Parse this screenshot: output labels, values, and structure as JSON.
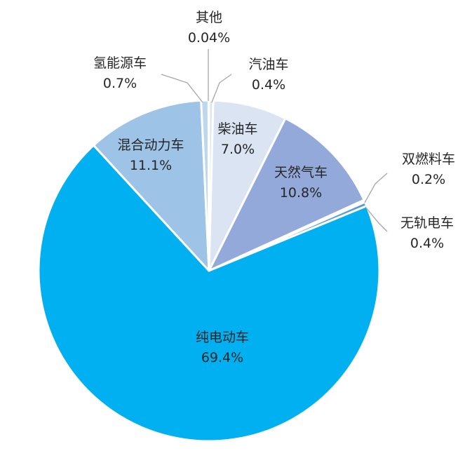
{
  "chart_data": {
    "type": "pie",
    "title": "",
    "slices": [
      {
        "name": "汽油车",
        "value": 0.4,
        "label": "0.4%",
        "color": "#dbe6f3"
      },
      {
        "name": "柴油车",
        "value": 7.0,
        "label": "7.0%",
        "color": "#dbe4f3"
      },
      {
        "name": "天然气车",
        "value": 10.8,
        "label": "10.8%",
        "color": "#93a9d9"
      },
      {
        "name": "双燃料车",
        "value": 0.2,
        "label": "0.2%",
        "color": "#7f96d0"
      },
      {
        "name": "无轨电车",
        "value": 0.4,
        "label": "0.4%",
        "color": "#5a9bd5"
      },
      {
        "name": "纯电动车",
        "value": 69.4,
        "label": "69.4%",
        "color": "#00b0f0"
      },
      {
        "name": "混合动力车",
        "value": 11.1,
        "label": "11.1%",
        "color": "#9dc3e6"
      },
      {
        "name": "氢能源车",
        "value": 0.7,
        "label": "0.7%",
        "color": "#bdd7ee"
      },
      {
        "name": "其他",
        "value": 0.04,
        "label": "0.04%",
        "color": "#d9e5f4"
      }
    ],
    "legend": "none"
  }
}
